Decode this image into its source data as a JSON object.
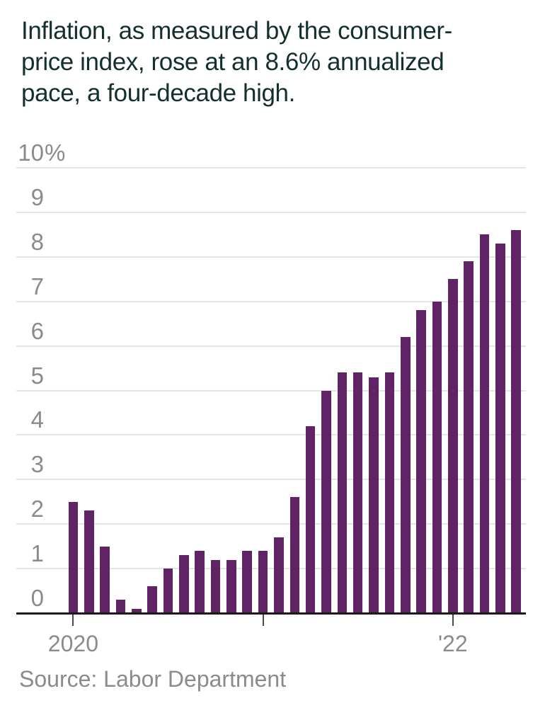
{
  "headline": {
    "lines": [
      "Inflation, as measured by the consumer-",
      "price index, rose at an 8.6% annualized",
      "pace, a four-decade high."
    ]
  },
  "source_note": "Source: Labor Department",
  "colors": {
    "bar": "#602366",
    "headline_text": "#14302e",
    "axis_text": "#8b8b8b",
    "gridline": "#e5e5e5",
    "axis_line": "#1b1b1b",
    "background": "#ffffff"
  },
  "chart_data": {
    "type": "bar",
    "title": "Inflation, as measured by the consumer-price index, rose at an 8.6% annualized pace, a four-decade high.",
    "ylabel": "",
    "xlabel": "",
    "ylim": [
      0,
      10
    ],
    "grid": "horizontal",
    "legend": "none",
    "x": [
      "Jan 2020",
      "Feb 2020",
      "Mar 2020",
      "Apr 2020",
      "May 2020",
      "Jun 2020",
      "Jul 2020",
      "Aug 2020",
      "Sep 2020",
      "Oct 2020",
      "Nov 2020",
      "Dec 2020",
      "Jan 2021",
      "Feb 2021",
      "Mar 2021",
      "Apr 2021",
      "May 2021",
      "Jun 2021",
      "Jul 2021",
      "Aug 2021",
      "Sep 2021",
      "Oct 2021",
      "Nov 2021",
      "Dec 2021",
      "Jan 2022",
      "Feb 2022",
      "Mar 2022",
      "Apr 2022",
      "May 2022"
    ],
    "values": [
      2.5,
      2.3,
      1.5,
      0.3,
      0.1,
      0.6,
      1.0,
      1.3,
      1.4,
      1.2,
      1.2,
      1.4,
      1.4,
      1.7,
      2.6,
      4.2,
      5.0,
      5.4,
      5.4,
      5.3,
      5.4,
      6.2,
      6.8,
      7.0,
      7.5,
      7.9,
      8.5,
      8.3,
      8.6
    ],
    "y_ticks": [
      {
        "value": 10,
        "label": "10%"
      },
      {
        "value": 9,
        "label": "9"
      },
      {
        "value": 8,
        "label": "8"
      },
      {
        "value": 7,
        "label": "7"
      },
      {
        "value": 6,
        "label": "6"
      },
      {
        "value": 5,
        "label": "5"
      },
      {
        "value": 4,
        "label": "4"
      },
      {
        "value": 3,
        "label": "3"
      },
      {
        "value": 2,
        "label": "2"
      },
      {
        "value": 1,
        "label": "1"
      },
      {
        "value": 0,
        "label": "0"
      }
    ],
    "x_ticks": [
      {
        "month_index": 0,
        "label": "2020"
      },
      {
        "month_index": 12,
        "label": ""
      },
      {
        "month_index": 24,
        "label": "'22"
      }
    ]
  }
}
